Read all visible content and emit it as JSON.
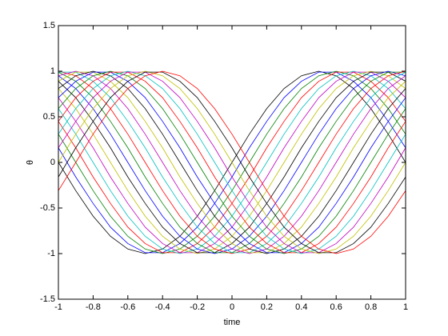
{
  "chart_data": {
    "type": "line",
    "xlabel": "time",
    "ylabel": "θ",
    "x": [
      -1,
      -0.9,
      -0.8,
      -0.7,
      -0.6,
      -0.5,
      -0.4,
      -0.3,
      -0.2,
      -0.1,
      0,
      0.1,
      0.2,
      0.3,
      0.4,
      0.5,
      0.6,
      0.7,
      0.8,
      0.9,
      1
    ],
    "xlim": [
      -1,
      1
    ],
    "xticks": [
      -1,
      -0.8,
      -0.6,
      -0.4,
      -0.2,
      0,
      0.2,
      0.4,
      0.6,
      0.8,
      1
    ],
    "ylim": [
      -1.5,
      1.5
    ],
    "yticks": [
      -1.5,
      -1,
      -0.5,
      0,
      0.5,
      1,
      1.5
    ],
    "grid": false,
    "series": [
      {
        "color": "#000000",
        "values": [
          0,
          -0.31,
          -0.59,
          -0.81,
          -0.95,
          -1,
          -0.95,
          -0.81,
          -0.59,
          -0.31,
          0,
          0.31,
          0.59,
          0.81,
          0.95,
          1,
          0.95,
          0.81,
          0.59,
          0.31,
          0
        ]
      },
      {
        "color": "#0000ff",
        "values": [
          0.16,
          -0.16,
          -0.45,
          -0.71,
          -0.89,
          -0.99,
          -0.99,
          -0.89,
          -0.71,
          -0.45,
          -0.16,
          0.16,
          0.45,
          0.71,
          0.89,
          0.99,
          0.99,
          0.89,
          0.71,
          0.45,
          0.16
        ]
      },
      {
        "color": "#008000",
        "values": [
          0.31,
          0,
          -0.31,
          -0.59,
          -0.81,
          -0.95,
          -1,
          -0.95,
          -0.81,
          -0.59,
          -0.31,
          0,
          0.31,
          0.59,
          0.81,
          0.95,
          1,
          0.95,
          0.81,
          0.59,
          0.31
        ]
      },
      {
        "color": "#ff0000",
        "values": [
          0.45,
          0.16,
          -0.16,
          -0.45,
          -0.71,
          -0.89,
          -0.99,
          -0.99,
          -0.89,
          -0.71,
          -0.45,
          -0.16,
          0.16,
          0.45,
          0.71,
          0.89,
          0.99,
          0.99,
          0.89,
          0.71,
          0.45
        ]
      },
      {
        "color": "#00bfbf",
        "values": [
          0.59,
          0.31,
          0,
          -0.31,
          -0.59,
          -0.81,
          -0.95,
          -1,
          -0.95,
          -0.81,
          -0.59,
          -0.31,
          0,
          0.31,
          0.59,
          0.81,
          0.95,
          1,
          0.95,
          0.81,
          0.59
        ]
      },
      {
        "color": "#bf00bf",
        "values": [
          0.71,
          0.45,
          0.16,
          -0.16,
          -0.45,
          -0.71,
          -0.89,
          -0.99,
          -0.99,
          -0.89,
          -0.71,
          -0.45,
          -0.16,
          0.16,
          0.45,
          0.71,
          0.89,
          0.99,
          0.99,
          0.89,
          0.71
        ]
      },
      {
        "color": "#bfbf00",
        "values": [
          0.81,
          0.59,
          0.31,
          0,
          -0.31,
          -0.59,
          -0.81,
          -0.95,
          -1,
          -0.95,
          -0.81,
          -0.59,
          -0.31,
          0,
          0.31,
          0.59,
          0.81,
          0.95,
          1,
          0.95,
          0.81
        ]
      },
      {
        "color": "#000000",
        "values": [
          0.89,
          0.71,
          0.45,
          0.16,
          -0.16,
          -0.45,
          -0.71,
          -0.89,
          -0.99,
          -0.99,
          -0.89,
          -0.71,
          -0.45,
          -0.16,
          0.16,
          0.45,
          0.71,
          0.89,
          0.99,
          0.99,
          0.89
        ]
      },
      {
        "color": "#0000ff",
        "values": [
          0.95,
          0.81,
          0.59,
          0.31,
          0,
          -0.31,
          -0.59,
          -0.81,
          -0.95,
          -1,
          -0.95,
          -0.81,
          -0.59,
          -0.31,
          0,
          0.31,
          0.59,
          0.81,
          0.95,
          1,
          0.95
        ]
      },
      {
        "color": "#008000",
        "values": [
          0.99,
          0.89,
          0.71,
          0.45,
          0.16,
          -0.16,
          -0.45,
          -0.71,
          -0.89,
          -0.99,
          -0.99,
          -0.89,
          -0.71,
          -0.45,
          -0.16,
          0.16,
          0.45,
          0.71,
          0.89,
          0.99,
          0.99
        ]
      },
      {
        "color": "#ff0000",
        "values": [
          1,
          0.95,
          0.81,
          0.59,
          0.31,
          0,
          -0.31,
          -0.59,
          -0.81,
          -0.95,
          -1,
          -0.95,
          -0.81,
          -0.59,
          -0.31,
          0,
          0.31,
          0.59,
          0.81,
          0.95,
          1
        ]
      },
      {
        "color": "#00bfbf",
        "values": [
          0.99,
          0.99,
          0.89,
          0.71,
          0.45,
          0.16,
          -0.16,
          -0.45,
          -0.71,
          -0.89,
          -0.99,
          -0.99,
          -0.89,
          -0.71,
          -0.45,
          -0.16,
          0.16,
          0.45,
          0.71,
          0.89,
          0.99
        ]
      },
      {
        "color": "#bf00bf",
        "values": [
          0.95,
          1,
          0.95,
          0.81,
          0.59,
          0.31,
          0,
          -0.31,
          -0.59,
          -0.81,
          -0.95,
          -1,
          -0.95,
          -0.81,
          -0.59,
          -0.31,
          0,
          0.31,
          0.59,
          0.81,
          0.95
        ]
      },
      {
        "color": "#bfbf00",
        "values": [
          0.89,
          0.99,
          0.99,
          0.89,
          0.71,
          0.45,
          0.16,
          -0.16,
          -0.45,
          -0.71,
          -0.89,
          -0.99,
          -0.99,
          -0.89,
          -0.71,
          -0.45,
          -0.16,
          0.16,
          0.45,
          0.71,
          0.89
        ]
      },
      {
        "color": "#000000",
        "values": [
          0.81,
          0.95,
          1,
          0.95,
          0.81,
          0.59,
          0.31,
          0,
          -0.31,
          -0.59,
          -0.81,
          -0.95,
          -1,
          -0.95,
          -0.81,
          -0.59,
          -0.31,
          0,
          0.31,
          0.59,
          0.81
        ]
      },
      {
        "color": "#0000ff",
        "values": [
          0.71,
          0.89,
          0.99,
          0.99,
          0.89,
          0.71,
          0.45,
          0.16,
          -0.16,
          -0.45,
          -0.71,
          -0.89,
          -0.99,
          -0.99,
          -0.89,
          -0.71,
          -0.45,
          -0.16,
          0.16,
          0.45,
          0.71
        ]
      },
      {
        "color": "#008000",
        "values": [
          0.59,
          0.81,
          0.95,
          1,
          0.95,
          0.81,
          0.59,
          0.31,
          0,
          -0.31,
          -0.59,
          -0.81,
          -0.95,
          -1,
          -0.95,
          -0.81,
          -0.59,
          -0.31,
          0,
          0.31,
          0.59
        ]
      },
      {
        "color": "#ff0000",
        "values": [
          0.45,
          0.71,
          0.89,
          0.99,
          0.99,
          0.89,
          0.71,
          0.45,
          0.16,
          -0.16,
          -0.45,
          -0.71,
          -0.89,
          -0.99,
          -0.99,
          -0.89,
          -0.71,
          -0.45,
          -0.16,
          0.16,
          0.45
        ]
      },
      {
        "color": "#00bfbf",
        "values": [
          0.31,
          0.59,
          0.81,
          0.95,
          1,
          0.95,
          0.81,
          0.59,
          0.31,
          0,
          -0.31,
          -0.59,
          -0.81,
          -0.95,
          -1,
          -0.95,
          -0.81,
          -0.59,
          -0.31,
          0,
          0.31
        ]
      },
      {
        "color": "#bf00bf",
        "values": [
          0.16,
          0.45,
          0.71,
          0.89,
          0.99,
          0.99,
          0.89,
          0.71,
          0.45,
          0.16,
          -0.16,
          -0.45,
          -0.71,
          -0.89,
          -0.99,
          -0.99,
          -0.89,
          -0.71,
          -0.45,
          -0.16,
          0.16
        ]
      },
      {
        "color": "#bfbf00",
        "values": [
          0,
          0.31,
          0.59,
          0.81,
          0.95,
          1,
          0.95,
          0.81,
          0.59,
          0.31,
          0,
          -0.31,
          -0.59,
          -0.81,
          -0.95,
          -1,
          -0.95,
          -0.81,
          -0.59,
          -0.31,
          0
        ]
      },
      {
        "color": "#000000",
        "values": [
          -0.16,
          0.16,
          0.45,
          0.71,
          0.89,
          0.99,
          0.99,
          0.89,
          0.71,
          0.45,
          0.16,
          -0.16,
          -0.45,
          -0.71,
          -0.89,
          -0.99,
          -0.99,
          -0.89,
          -0.71,
          -0.45,
          -0.16
        ]
      },
      {
        "color": "#ff0000",
        "values": [
          -0.31,
          0,
          0.31,
          0.59,
          0.81,
          0.95,
          1,
          0.95,
          0.81,
          0.59,
          0.31,
          0,
          -0.31,
          -0.59,
          -0.81,
          -0.95,
          -1,
          -0.95,
          -0.81,
          -0.59,
          -0.31
        ]
      }
    ]
  }
}
